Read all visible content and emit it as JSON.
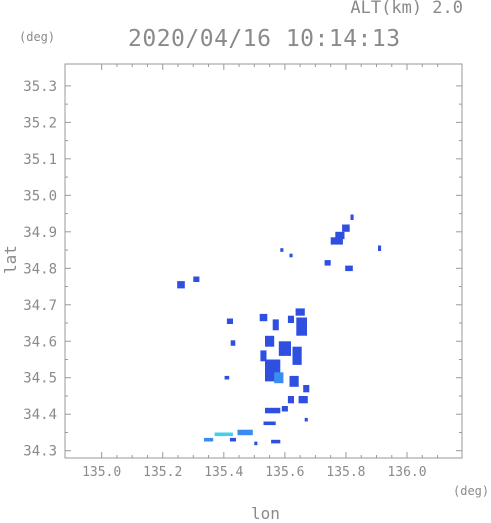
{
  "header": {
    "altitude_label": "ALT(km) 2.0",
    "timestamp": "2020/04/16 10:14:13"
  },
  "chart_data": {
    "type": "heatmap",
    "xlabel": "lon",
    "ylabel": "lat",
    "x_unit": "(deg)",
    "y_unit": "(deg)",
    "xlim": [
      134.88,
      136.18
    ],
    "ylim": [
      34.28,
      35.36
    ],
    "xticks": [
      135.0,
      135.2,
      135.4,
      135.6,
      135.8,
      136.0
    ],
    "xtick_labels": [
      "135.0",
      "135.2",
      "135.4",
      "135.6",
      "135.8",
      "136.0"
    ],
    "yticks": [
      34.3,
      34.4,
      34.5,
      34.6,
      34.7,
      34.8,
      34.9,
      35.0,
      35.1,
      35.2,
      35.3
    ],
    "ytick_labels": [
      "34.3",
      "34.4",
      "34.5",
      "34.6",
      "34.7",
      "34.8",
      "34.9",
      "35.0",
      "35.1",
      "35.2",
      "35.3"
    ],
    "grid": false,
    "colors": {
      "weak": "#2f4fe0",
      "moderate": "#3b8cf0",
      "strong": "#45d0e8"
    },
    "cells": [
      {
        "lon": 135.82,
        "lat": 34.94,
        "w": 0.01,
        "h": 0.015,
        "level": "weak"
      },
      {
        "lon": 135.8,
        "lat": 34.91,
        "w": 0.025,
        "h": 0.02,
        "level": "weak"
      },
      {
        "lon": 135.78,
        "lat": 34.89,
        "w": 0.03,
        "h": 0.02,
        "level": "weak"
      },
      {
        "lon": 135.77,
        "lat": 34.875,
        "w": 0.04,
        "h": 0.02,
        "level": "weak"
      },
      {
        "lon": 135.91,
        "lat": 34.855,
        "w": 0.01,
        "h": 0.015,
        "level": "weak"
      },
      {
        "lon": 135.81,
        "lat": 34.8,
        "w": 0.025,
        "h": 0.015,
        "level": "weak"
      },
      {
        "lon": 135.74,
        "lat": 34.815,
        "w": 0.02,
        "h": 0.015,
        "level": "weak"
      },
      {
        "lon": 135.62,
        "lat": 34.835,
        "w": 0.01,
        "h": 0.01,
        "level": "weak"
      },
      {
        "lon": 135.59,
        "lat": 34.85,
        "w": 0.01,
        "h": 0.01,
        "level": "weak"
      },
      {
        "lon": 135.26,
        "lat": 34.755,
        "w": 0.025,
        "h": 0.02,
        "level": "weak"
      },
      {
        "lon": 135.31,
        "lat": 34.77,
        "w": 0.02,
        "h": 0.015,
        "level": "weak"
      },
      {
        "lon": 135.42,
        "lat": 34.655,
        "w": 0.02,
        "h": 0.015,
        "level": "weak"
      },
      {
        "lon": 135.43,
        "lat": 34.595,
        "w": 0.015,
        "h": 0.015,
        "level": "weak"
      },
      {
        "lon": 135.53,
        "lat": 34.665,
        "w": 0.025,
        "h": 0.02,
        "level": "weak"
      },
      {
        "lon": 135.57,
        "lat": 34.645,
        "w": 0.02,
        "h": 0.03,
        "level": "weak"
      },
      {
        "lon": 135.62,
        "lat": 34.66,
        "w": 0.02,
        "h": 0.02,
        "level": "weak"
      },
      {
        "lon": 135.65,
        "lat": 34.68,
        "w": 0.03,
        "h": 0.02,
        "level": "weak"
      },
      {
        "lon": 135.655,
        "lat": 34.64,
        "w": 0.035,
        "h": 0.05,
        "level": "weak"
      },
      {
        "lon": 135.55,
        "lat": 34.6,
        "w": 0.03,
        "h": 0.03,
        "level": "weak"
      },
      {
        "lon": 135.6,
        "lat": 34.58,
        "w": 0.04,
        "h": 0.04,
        "level": "weak"
      },
      {
        "lon": 135.64,
        "lat": 34.56,
        "w": 0.03,
        "h": 0.05,
        "level": "weak"
      },
      {
        "lon": 135.53,
        "lat": 34.56,
        "w": 0.02,
        "h": 0.03,
        "level": "weak"
      },
      {
        "lon": 135.56,
        "lat": 34.52,
        "w": 0.05,
        "h": 0.06,
        "level": "weak"
      },
      {
        "lon": 135.58,
        "lat": 34.5,
        "w": 0.03,
        "h": 0.03,
        "level": "moderate"
      },
      {
        "lon": 135.63,
        "lat": 34.49,
        "w": 0.03,
        "h": 0.03,
        "level": "weak"
      },
      {
        "lon": 135.67,
        "lat": 34.47,
        "w": 0.02,
        "h": 0.02,
        "level": "weak"
      },
      {
        "lon": 135.66,
        "lat": 34.44,
        "w": 0.03,
        "h": 0.02,
        "level": "weak"
      },
      {
        "lon": 135.62,
        "lat": 34.44,
        "w": 0.02,
        "h": 0.02,
        "level": "weak"
      },
      {
        "lon": 135.41,
        "lat": 34.5,
        "w": 0.015,
        "h": 0.01,
        "level": "weak"
      },
      {
        "lon": 135.56,
        "lat": 34.41,
        "w": 0.05,
        "h": 0.015,
        "level": "weak"
      },
      {
        "lon": 135.6,
        "lat": 34.415,
        "w": 0.02,
        "h": 0.015,
        "level": "weak"
      },
      {
        "lon": 135.67,
        "lat": 34.385,
        "w": 0.01,
        "h": 0.01,
        "level": "weak"
      },
      {
        "lon": 135.55,
        "lat": 34.375,
        "w": 0.04,
        "h": 0.01,
        "level": "weak"
      },
      {
        "lon": 135.47,
        "lat": 34.35,
        "w": 0.05,
        "h": 0.015,
        "level": "moderate"
      },
      {
        "lon": 135.4,
        "lat": 34.345,
        "w": 0.06,
        "h": 0.01,
        "level": "strong"
      },
      {
        "lon": 135.35,
        "lat": 34.33,
        "w": 0.03,
        "h": 0.01,
        "level": "moderate"
      },
      {
        "lon": 135.43,
        "lat": 34.33,
        "w": 0.02,
        "h": 0.01,
        "level": "weak"
      },
      {
        "lon": 135.57,
        "lat": 34.325,
        "w": 0.03,
        "h": 0.01,
        "level": "weak"
      },
      {
        "lon": 135.505,
        "lat": 34.32,
        "w": 0.01,
        "h": 0.01,
        "level": "weak"
      }
    ]
  }
}
